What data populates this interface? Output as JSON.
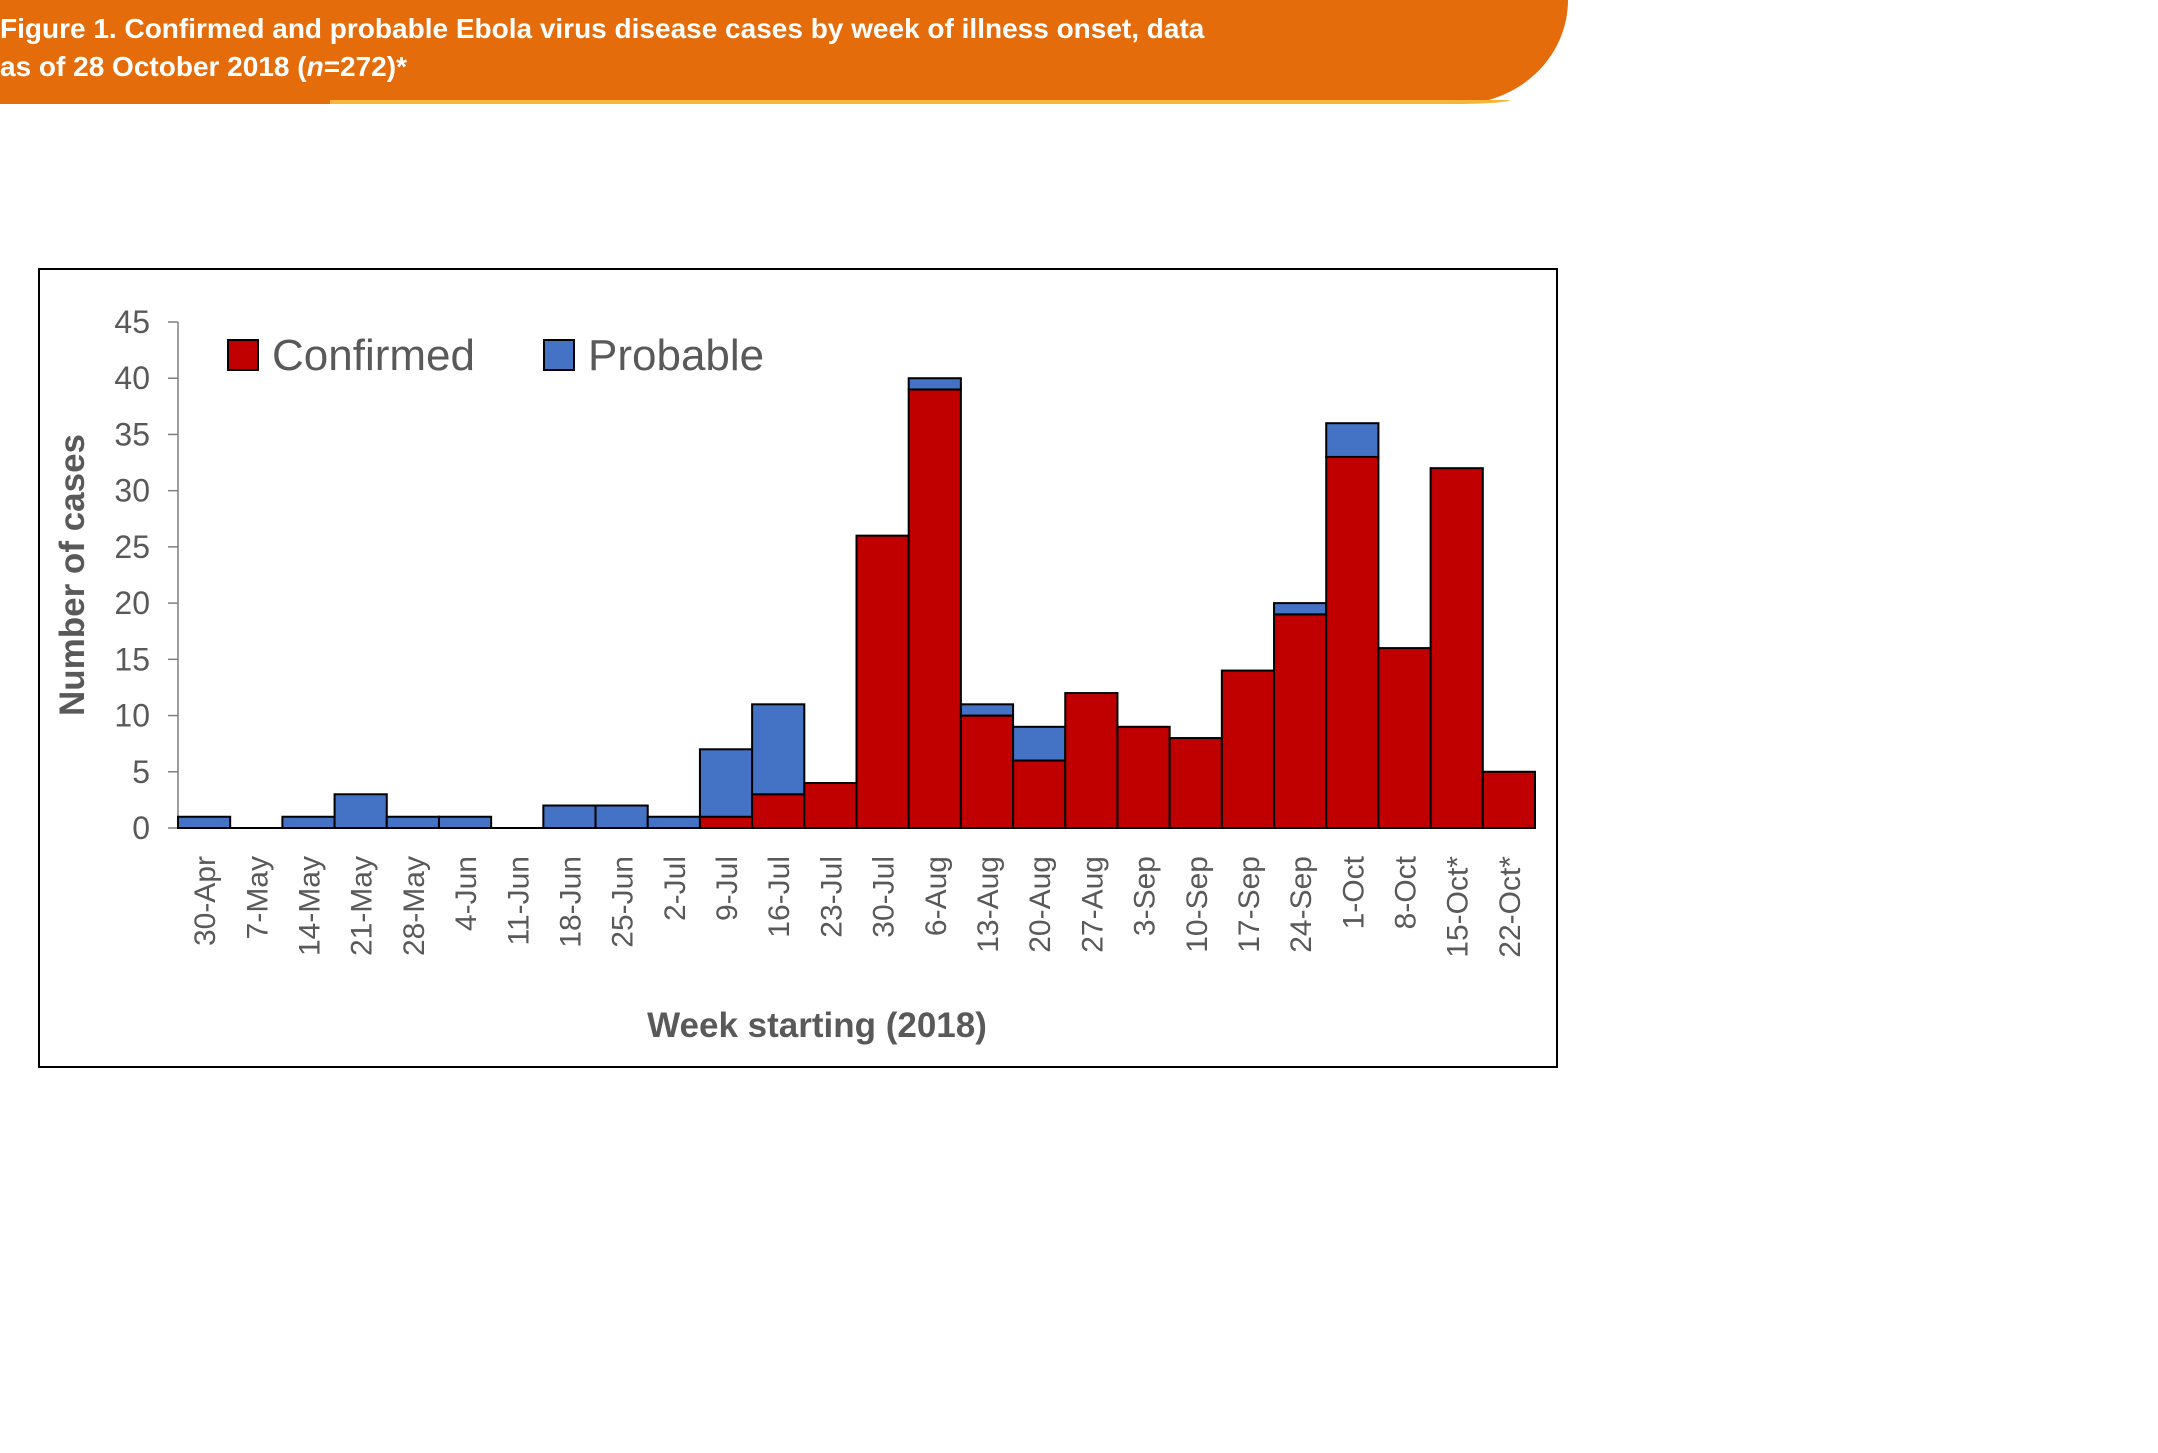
{
  "figure": {
    "title_part1": "Figure 1. Confirmed and probable Ebola virus disease cases by week of illness onset, data",
    "title_part2_prefix": "as of 28 October 2018 (",
    "title_part2_n": "n",
    "title_part2_suffix": "=272)*",
    "banner_color": "#E46C0A"
  },
  "chart_data": {
    "type": "bar",
    "stacked": true,
    "xlabel": "Week starting (2018)",
    "ylabel": "Number of cases",
    "ylim": [
      0,
      45
    ],
    "yticks": [
      0,
      5,
      10,
      15,
      20,
      25,
      30,
      35,
      40,
      45
    ],
    "legend_position": "top-left",
    "grid": false,
    "categories": [
      "30-Apr",
      "7-May",
      "14-May",
      "21-May",
      "28-May",
      "4-Jun",
      "11-Jun",
      "18-Jun",
      "25-Jun",
      "2-Jul",
      "9-Jul",
      "16-Jul",
      "23-Jul",
      "30-Jul",
      "6-Aug",
      "13-Aug",
      "20-Aug",
      "27-Aug",
      "3-Sep",
      "10-Sep",
      "17-Sep",
      "24-Sep",
      "1-Oct",
      "8-Oct",
      "15-Oct*",
      "22-Oct*"
    ],
    "series": [
      {
        "name": "Confirmed",
        "color": "#C00000",
        "values": [
          0,
          0,
          0,
          0,
          0,
          0,
          0,
          0,
          0,
          0,
          1,
          3,
          4,
          26,
          39,
          10,
          6,
          12,
          9,
          8,
          14,
          19,
          33,
          16,
          32,
          5
        ]
      },
      {
        "name": "Probable",
        "color": "#4472C4",
        "values": [
          1,
          0,
          1,
          3,
          1,
          1,
          0,
          2,
          2,
          1,
          6,
          8,
          0,
          0,
          1,
          1,
          3,
          0,
          0,
          0,
          0,
          1,
          3,
          0,
          0,
          0
        ]
      }
    ]
  }
}
